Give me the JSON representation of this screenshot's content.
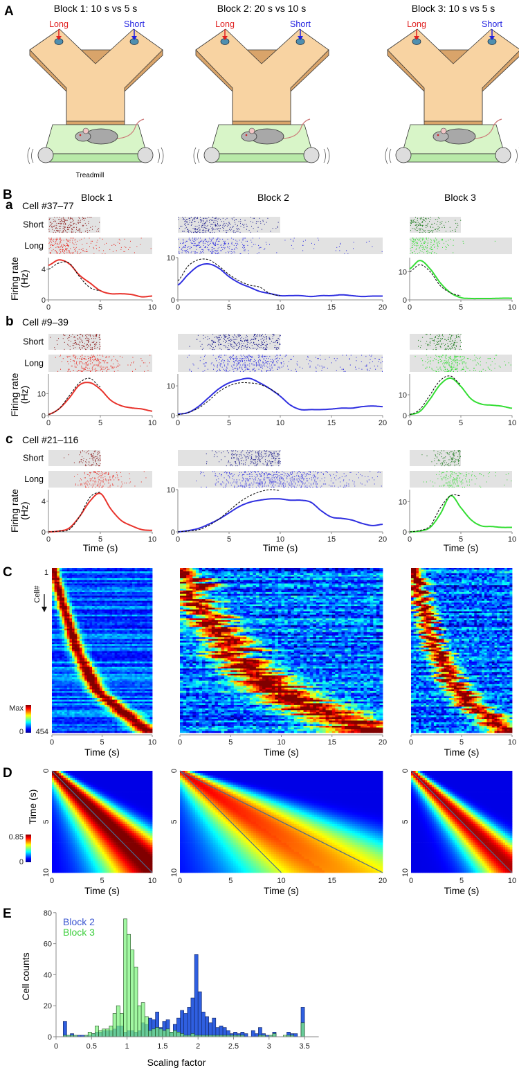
{
  "panel_labels": {
    "A": "A",
    "B": "B",
    "C": "C",
    "D": "D",
    "E": "E"
  },
  "panelA": {
    "blocks": [
      {
        "title": "Block 1: 10 s vs 5 s",
        "long": "Long",
        "short": "Short"
      },
      {
        "title": "Block 2: 20 s vs 10 s",
        "long": "Long",
        "short": "Short"
      },
      {
        "title": "Block 3: 10 s vs 5 s",
        "long": "Long",
        "short": "Short"
      }
    ],
    "treadmill_label": "Treadmill"
  },
  "panelB": {
    "block_titles": [
      "Block 1",
      "Block 2",
      "Block 3"
    ],
    "rows": [
      {
        "letter": "a",
        "cell": "Cell #37–77"
      },
      {
        "letter": "b",
        "cell": "Cell #9–39"
      },
      {
        "letter": "c",
        "cell": "Cell #21–116"
      }
    ],
    "short_label": "Short",
    "long_label": "Long",
    "ylabel_line1": "Firing rate",
    "ylabel_line2": "(Hz)",
    "xlabel": "Time (s)"
  },
  "panelC": {
    "ylabel": "Cell#",
    "row_first": "1",
    "row_last": "454",
    "colorbar_max": "Max",
    "colorbar_min": "0",
    "xlabel": "Time (s)"
  },
  "panelD": {
    "ylabel": "Time (s)",
    "colorbar_max": "0.85",
    "colorbar_min": "0",
    "xlabel": "Time (s)"
  },
  "colors": {
    "block1_long": "#e8322b",
    "block1_short": "#8b1a1a",
    "block2_long": "#2f2fe0",
    "block2_short": "#1c1c8c",
    "block3_long": "#33dd33",
    "block3_short": "#1a7a1a",
    "raster_bg": "#e2e2e2",
    "hist_block2": "#2f5fe0",
    "hist_block3": "#7ef57e"
  },
  "chart_data": [
    {
      "type": "line",
      "panel": "B-a",
      "block": 1,
      "xlim": [
        0,
        10
      ],
      "ylim": [
        0,
        5.5
      ],
      "yticks": [
        0,
        4
      ],
      "xticks": [
        0,
        5,
        10
      ],
      "short_window": [
        0,
        5
      ],
      "series": [
        {
          "line": "solid",
          "x_step": 1,
          "values": [
            4.5,
            5.2,
            4.7,
            3.2,
            2.2,
            1.2,
            0.8,
            0.8,
            0.7,
            0.4,
            0.5
          ]
        },
        {
          "line": "dashed",
          "x_step": 1,
          "values": [
            4.0,
            4.8,
            4.8,
            3.0,
            1.6,
            1.2
          ]
        }
      ]
    },
    {
      "type": "line",
      "panel": "B-a",
      "block": 2,
      "xlim": [
        0,
        20
      ],
      "ylim": [
        0,
        10
      ],
      "yticks": [
        0,
        10
      ],
      "xticks": [
        0,
        5,
        10,
        15,
        20
      ],
      "short_window": [
        0,
        10
      ],
      "series": [
        {
          "line": "solid",
          "x_step": 1,
          "values": [
            3.5,
            6,
            8,
            8.5,
            7.5,
            5.5,
            4,
            3,
            2,
            1.5,
            1,
            1,
            1,
            0.8,
            1,
            1,
            1.2,
            1,
            0.8,
            0.9,
            0.9
          ]
        },
        {
          "line": "dashed",
          "x_step": 1,
          "values": [
            4.5,
            8,
            9.5,
            9.5,
            8,
            6,
            4.5,
            3.5,
            3,
            1.5,
            1
          ]
        }
      ]
    },
    {
      "type": "line",
      "panel": "B-a",
      "block": 3,
      "xlim": [
        0,
        10
      ],
      "ylim": [
        0,
        15
      ],
      "yticks": [
        0,
        10
      ],
      "xticks": [
        0,
        5,
        10
      ],
      "short_window": [
        0,
        5
      ],
      "series": [
        {
          "line": "solid",
          "x_step": 1,
          "values": [
            11,
            14,
            11,
            6,
            2.5,
            0.8,
            0.5,
            0.5,
            0.5,
            0.6,
            0.6
          ]
        },
        {
          "line": "dashed",
          "x_step": 1,
          "values": [
            10,
            12.5,
            10,
            5,
            2.5,
            1.5
          ]
        }
      ]
    },
    {
      "type": "line",
      "panel": "B-b",
      "block": 1,
      "xlim": [
        0,
        10
      ],
      "ylim": [
        0,
        19
      ],
      "yticks": [
        0,
        10
      ],
      "xticks": [
        0,
        5,
        10
      ],
      "short_window": [
        0,
        5
      ],
      "series": [
        {
          "line": "solid",
          "x_step": 1,
          "values": [
            0.5,
            3,
            8,
            14,
            15,
            12,
            7,
            4.5,
            3.5,
            3,
            2
          ]
        },
        {
          "line": "dashed",
          "x_step": 1,
          "values": [
            0.5,
            3,
            9,
            15,
            17,
            13
          ]
        }
      ]
    },
    {
      "type": "line",
      "panel": "B-b",
      "block": 2,
      "xlim": [
        0,
        20
      ],
      "ylim": [
        0,
        14
      ],
      "yticks": [
        0,
        10
      ],
      "xticks": [
        0,
        5,
        10,
        15,
        20
      ],
      "short_window": [
        0,
        10
      ],
      "series": [
        {
          "line": "solid",
          "x_step": 1,
          "values": [
            0.5,
            1,
            3,
            6,
            9,
            11,
            12,
            12.5,
            11,
            9,
            6.5,
            3.5,
            2,
            2,
            2,
            2.2,
            2.5,
            2.5,
            3,
            3.2,
            3
          ]
        },
        {
          "line": "dashed",
          "x_step": 1,
          "values": [
            0.3,
            1,
            2.5,
            5,
            8,
            10,
            11,
            11,
            10.5,
            9,
            7
          ]
        }
      ]
    },
    {
      "type": "line",
      "panel": "B-b",
      "block": 3,
      "xlim": [
        0,
        10
      ],
      "ylim": [
        0,
        20
      ],
      "yticks": [
        0,
        10
      ],
      "xticks": [
        0,
        5,
        10
      ],
      "short_window": [
        0,
        5
      ],
      "series": [
        {
          "line": "solid",
          "x_step": 1,
          "values": [
            0.5,
            2,
            8,
            15,
            18,
            14,
            8,
            5.5,
            5,
            4.5,
            3.5
          ]
        },
        {
          "line": "dashed",
          "x_step": 1,
          "values": [
            0.5,
            3,
            10,
            17,
            19,
            15
          ]
        }
      ]
    },
    {
      "type": "line",
      "panel": "B-c",
      "block": 1,
      "xlim": [
        0,
        10
      ],
      "ylim": [
        0,
        5.5
      ],
      "yticks": [
        0,
        4
      ],
      "xticks": [
        0,
        5,
        10
      ],
      "short_window": [
        0,
        5
      ],
      "series": [
        {
          "line": "solid",
          "x_step": 1,
          "values": [
            0,
            0.1,
            0.5,
            2,
            4,
            5,
            3,
            1.5,
            0.8,
            0.3,
            0.2
          ]
        },
        {
          "line": "dashed",
          "x_step": 1,
          "values": [
            0,
            0.1,
            0.3,
            2,
            4.5,
            5.2
          ]
        }
      ]
    },
    {
      "type": "line",
      "panel": "B-c",
      "block": 2,
      "xlim": [
        0,
        20
      ],
      "ylim": [
        0,
        10
      ],
      "yticks": [
        0,
        10
      ],
      "xticks": [
        0,
        5,
        10,
        15,
        20
      ],
      "short_window": [
        0,
        10
      ],
      "series": [
        {
          "line": "solid",
          "x_step": 1,
          "values": [
            0,
            0.3,
            0.8,
            1.8,
            3,
            4.5,
            6,
            7,
            7.5,
            7.8,
            7.8,
            7.5,
            7.5,
            7,
            5,
            3.5,
            3.2,
            2.8,
            2,
            1.5,
            1.8
          ]
        },
        {
          "line": "dashed",
          "x_step": 1,
          "values": [
            0,
            0.2,
            0.5,
            1.5,
            3,
            5,
            7,
            8.5,
            9.5,
            10,
            9.8
          ]
        }
      ]
    },
    {
      "type": "line",
      "panel": "B-c",
      "block": 3,
      "xlim": [
        0,
        10
      ],
      "ylim": [
        0,
        14
      ],
      "yticks": [
        0,
        10
      ],
      "xticks": [
        0,
        5,
        10
      ],
      "short_window": [
        0,
        5
      ],
      "series": [
        {
          "line": "solid",
          "x_step": 1,
          "values": [
            0,
            0.3,
            1.5,
            6,
            12,
            8,
            4,
            2,
            1.8,
            1.5,
            1.5
          ]
        },
        {
          "line": "dashed",
          "x_step": 1,
          "values": [
            0,
            0.5,
            2,
            8,
            12,
            12
          ]
        }
      ]
    },
    {
      "type": "heatmap",
      "panel": "C",
      "block": 1,
      "xlim": [
        0,
        10
      ],
      "xticks": [
        0,
        5,
        10
      ],
      "rows": [
        1,
        454
      ],
      "colormap": "jet"
    },
    {
      "type": "heatmap",
      "panel": "C",
      "block": 2,
      "xlim": [
        0,
        20
      ],
      "xticks": [
        0,
        5,
        10,
        15,
        20
      ],
      "rows": [
        1,
        454
      ],
      "colormap": "jet"
    },
    {
      "type": "heatmap",
      "panel": "C",
      "block": 3,
      "xlim": [
        0,
        10
      ],
      "xticks": [
        0,
        5,
        10
      ],
      "rows": [
        1,
        454
      ],
      "colormap": "jet"
    },
    {
      "type": "heatmap",
      "panel": "D",
      "block": 1,
      "xlim": [
        0,
        10
      ],
      "ylim": [
        0,
        10
      ],
      "xticks": [
        0,
        5,
        10
      ],
      "yticks": [
        0,
        5,
        10
      ],
      "clim": [
        0,
        0.85
      ],
      "colormap": "jet",
      "reference_lines": [
        [
          [
            0,
            0
          ],
          [
            10,
            10
          ]
        ]
      ]
    },
    {
      "type": "heatmap",
      "panel": "D",
      "block": 2,
      "xlim": [
        0,
        20
      ],
      "ylim": [
        0,
        10
      ],
      "xticks": [
        0,
        5,
        10,
        15,
        20
      ],
      "yticks": [
        0,
        5,
        10
      ],
      "clim": [
        0,
        0.85
      ],
      "colormap": "jet",
      "reference_lines": [
        [
          [
            0,
            0
          ],
          [
            10,
            10
          ]
        ],
        [
          [
            0,
            0
          ],
          [
            20,
            10
          ]
        ]
      ]
    },
    {
      "type": "heatmap",
      "panel": "D",
      "block": 3,
      "xlim": [
        0,
        10
      ],
      "ylim": [
        0,
        10
      ],
      "xticks": [
        0,
        5,
        10
      ],
      "yticks": [
        0,
        5,
        10
      ],
      "clim": [
        0,
        0.85
      ],
      "colormap": "jet",
      "reference_lines": [
        [
          [
            0,
            0
          ],
          [
            10,
            10
          ]
        ]
      ]
    },
    {
      "type": "bar",
      "panel": "E",
      "xlabel": "Scaling factor",
      "ylabel": "Cell counts",
      "xlim": [
        0,
        3.7
      ],
      "ylim": [
        0,
        80
      ],
      "xticks": [
        0,
        0.5,
        1,
        1.5,
        2,
        2.5,
        3,
        3.5
      ],
      "yticks": [
        0,
        20,
        40,
        60,
        80
      ],
      "bin_start": 0.1,
      "bin_width": 0.05,
      "legend": "top-left",
      "series": [
        {
          "name": "Block 2",
          "color": "#2f5fe0",
          "values": [
            10,
            1,
            2,
            1,
            1,
            1,
            1,
            1,
            2,
            3,
            3,
            4,
            4,
            4,
            5,
            7,
            7,
            3,
            4,
            4,
            3,
            4,
            9,
            8,
            12,
            11,
            16,
            6,
            10,
            11,
            3,
            8,
            12,
            17,
            15,
            19,
            25,
            53,
            29,
            16,
            13,
            9,
            12,
            6,
            7,
            6,
            4,
            2,
            3,
            2,
            3,
            2,
            0,
            4,
            2,
            6,
            2,
            1,
            1,
            3,
            0,
            0,
            0,
            3,
            2,
            2,
            0,
            19
          ]
        },
        {
          "name": "Block 3",
          "color": "#7ef57e",
          "values": [
            1,
            1,
            1,
            1,
            0,
            0,
            1,
            3,
            2,
            7,
            4,
            5,
            5,
            7,
            15,
            20,
            15,
            76,
            66,
            56,
            45,
            20,
            22,
            13,
            4,
            5,
            6,
            5,
            4,
            5,
            3,
            4,
            3,
            2,
            1,
            1,
            2,
            1,
            1,
            1,
            1,
            1,
            1,
            1,
            1,
            1,
            1,
            1,
            1,
            1,
            1,
            0,
            0,
            0,
            0,
            1,
            1,
            0,
            1,
            2,
            0,
            0,
            1,
            1,
            1,
            0,
            0,
            9
          ]
        }
      ]
    }
  ]
}
